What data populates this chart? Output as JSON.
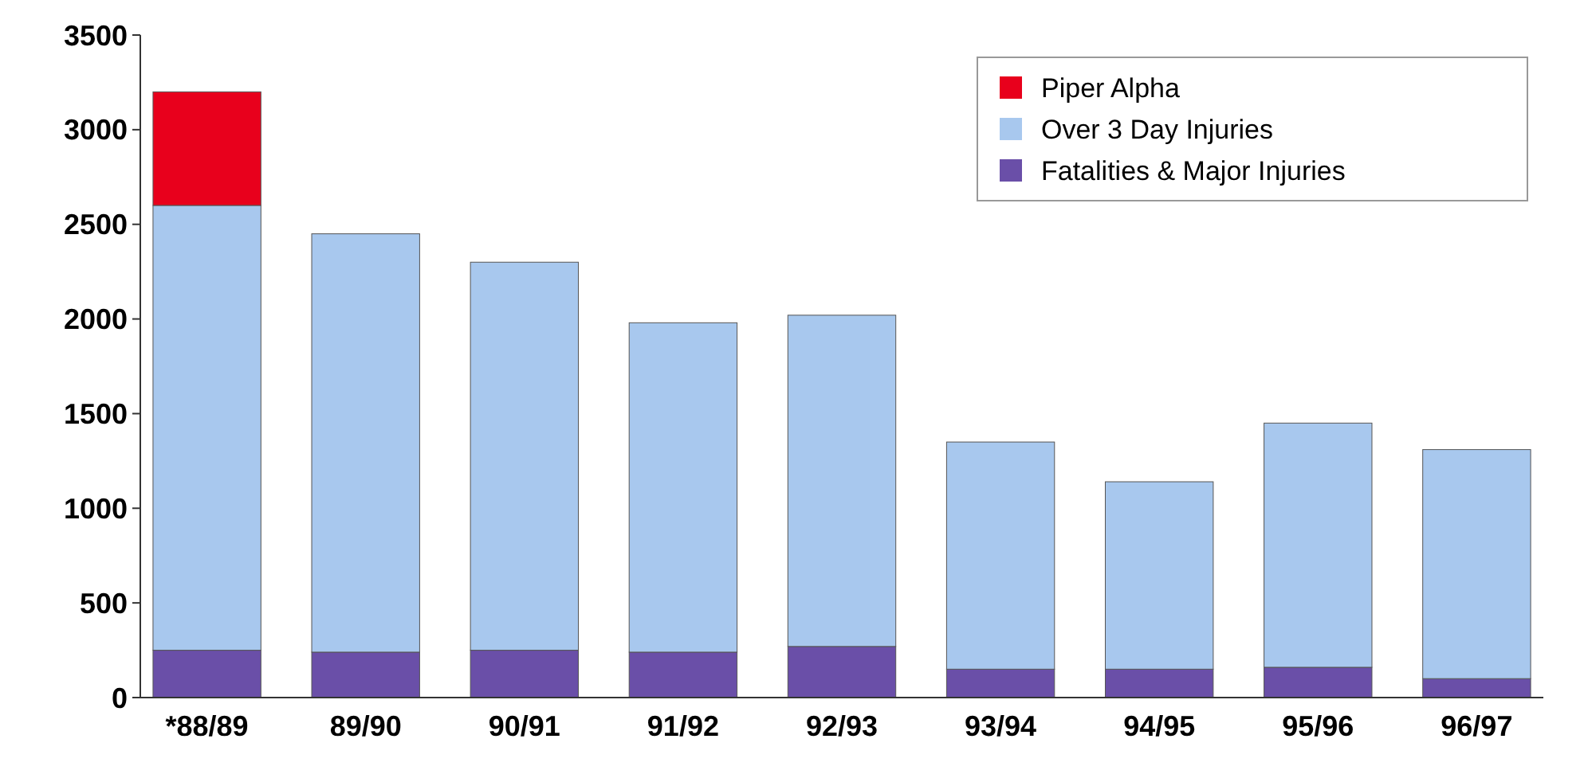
{
  "chart_data": {
    "type": "bar",
    "stacked": true,
    "categories": [
      "*88/89",
      "89/90",
      "90/91",
      "91/92",
      "92/93",
      "93/94",
      "94/95",
      "95/96",
      "96/97"
    ],
    "series": [
      {
        "name": "Fatalities & Major Injuries",
        "color": "#6a4fa8",
        "values": [
          250,
          240,
          250,
          240,
          270,
          150,
          150,
          160,
          100
        ]
      },
      {
        "name": "Over 3 Day Injuries",
        "color": "#a8c8ee",
        "values": [
          2350,
          2210,
          2050,
          1740,
          1750,
          1200,
          990,
          1290,
          1210
        ]
      },
      {
        "name": "Piper Alpha",
        "color": "#e8001c",
        "values": [
          600,
          0,
          0,
          0,
          0,
          0,
          0,
          0,
          0
        ]
      }
    ],
    "ylim": [
      0,
      3500
    ],
    "yticks": [
      0,
      500,
      1000,
      1500,
      2000,
      2500,
      3000,
      3500
    ],
    "legend": "top right",
    "grid": false
  }
}
